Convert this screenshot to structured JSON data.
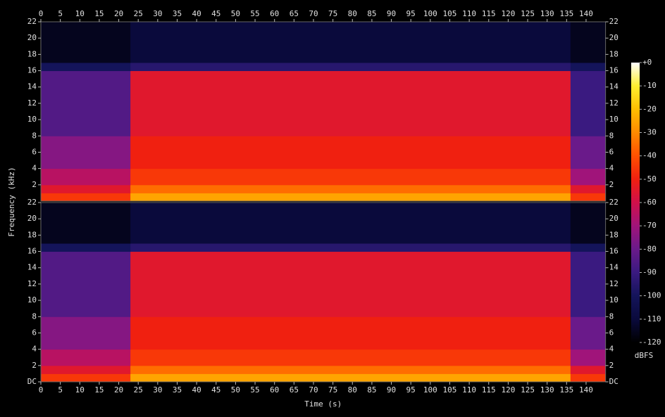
{
  "chart_data": [
    {
      "type": "heatmap",
      "ylabel": "Frequency (kHz)",
      "xlim": [
        0,
        145
      ],
      "ylim": [
        0,
        22
      ],
      "xticks": [
        0,
        5,
        10,
        15,
        20,
        25,
        30,
        35,
        40,
        45,
        50,
        55,
        60,
        65,
        70,
        75,
        80,
        85,
        90,
        95,
        100,
        105,
        110,
        115,
        120,
        125,
        130,
        135,
        140
      ],
      "yticks": [
        2,
        4,
        6,
        8,
        10,
        12,
        14,
        16,
        18,
        20,
        22
      ],
      "xbins": [
        0,
        23,
        136,
        145
      ],
      "ybins": [
        0,
        1,
        2,
        4,
        8,
        16,
        17,
        22
      ],
      "values": [
        [
          -45,
          -25,
          -45
        ],
        [
          -55,
          -35,
          -55
        ],
        [
          -65,
          -45,
          -70
        ],
        [
          -75,
          -50,
          -80
        ],
        [
          -85,
          -55,
          -90
        ],
        [
          -100,
          -95,
          -100
        ],
        [
          -115,
          -110,
          -115
        ]
      ]
    },
    {
      "type": "heatmap",
      "xlabel": "Time (s)",
      "xlim": [
        0,
        145
      ],
      "ylim": [
        0,
        22
      ],
      "xticks": [
        0,
        5,
        10,
        15,
        20,
        25,
        30,
        35,
        40,
        45,
        50,
        55,
        60,
        65,
        70,
        75,
        80,
        85,
        90,
        95,
        100,
        105,
        110,
        115,
        120,
        125,
        130,
        135,
        140
      ],
      "yticks": [
        {
          "value": 0,
          "label": "DC"
        },
        2,
        4,
        6,
        8,
        10,
        12,
        14,
        16,
        18,
        20,
        22
      ],
      "xbins": [
        0,
        23,
        136,
        145
      ],
      "ybins": [
        0,
        1,
        2,
        4,
        8,
        16,
        17,
        22
      ],
      "values": [
        [
          -45,
          -25,
          -45
        ],
        [
          -55,
          -35,
          -55
        ],
        [
          -65,
          -45,
          -70
        ],
        [
          -75,
          -50,
          -80
        ],
        [
          -85,
          -55,
          -90
        ],
        [
          -100,
          -95,
          -100
        ],
        [
          -115,
          -110,
          -115
        ]
      ]
    }
  ],
  "colorbar": {
    "label": "dBFS",
    "lim": [
      -120,
      0
    ],
    "ticks": [
      {
        "value": 0,
        "label": "+0"
      },
      -10,
      -20,
      -30,
      -40,
      -50,
      -60,
      -70,
      -80,
      -90,
      -100,
      -110,
      -120
    ],
    "colors": [
      "#000000",
      "#0a0a3c",
      "#14145a",
      "#3a1a80",
      "#6a1a8a",
      "#a0147a",
      "#d0104a",
      "#f02010",
      "#ff5000",
      "#ff8a00",
      "#ffbe00",
      "#ffee30",
      "#ffffff"
    ]
  }
}
